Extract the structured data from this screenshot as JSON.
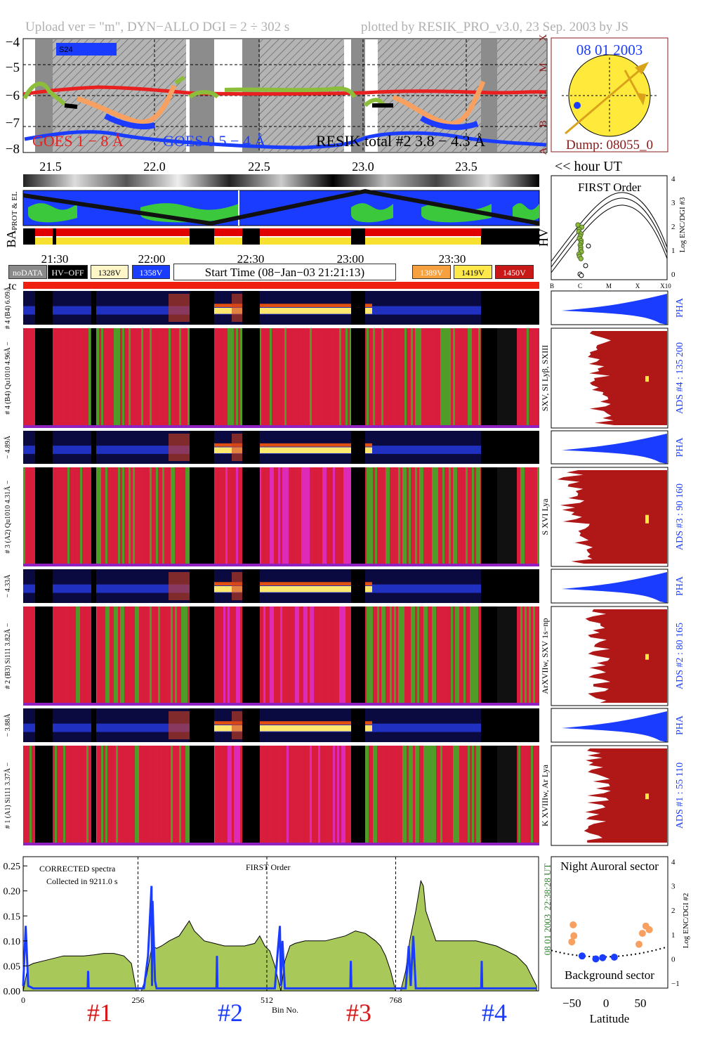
{
  "header": {
    "left": "Upload ver = \"m\", DYN−ALLO DGI =   2 ÷ 302 s",
    "right": "plotted by RESIK_PRO_v3.0, 23 Sep. 2003 by JS"
  },
  "goes_panel": {
    "y_ticks": [
      "−4",
      "−5",
      "−6",
      "−7",
      "−8"
    ],
    "x_ticks": [
      "21.5",
      "22.0",
      "22.5",
      "23.0",
      "23.5"
    ],
    "class_labels": [
      "X",
      "M",
      "C",
      "B",
      "A"
    ],
    "s_label": "S24",
    "legend_goes1": "GOES 1 − 8 Å",
    "legend_goes2": "GOES 0.5 − 4 Å",
    "legend_resik": "RESIK total #2  3.8 − 4.3 Å",
    "xaxis_label": "<< hour UT",
    "colors": {
      "goes_long": "#e82020",
      "goes_short": "#1a3cff",
      "resik_orange": "#f7a060",
      "resik_green": "#8cbe3c",
      "resik_blue": "#1e3cff"
    }
  },
  "sun_panel": {
    "date": "08 01 2003",
    "dump": "Dump: 08055_0",
    "sun_color": "#ffea3c",
    "arrow_color": "#d9a21a"
  },
  "orbit_panel": {
    "label_top": "PROT & EL",
    "label_ba": "BA",
    "label_hv": "HV",
    "time_ticks": [
      "21:30",
      "22:00",
      "22:30",
      "23:00",
      "23:30"
    ]
  },
  "first_order_panel": {
    "title": "FIRST Order",
    "ylabel": "Log ENC/DGI #3",
    "y_ticks": [
      "4",
      "3",
      "2",
      "1",
      "0"
    ],
    "x_ticks": [
      "B",
      "C",
      "M",
      "X",
      "X10"
    ]
  },
  "status_bar": {
    "nodata": "noDATA",
    "hvoff": "HV−OFF",
    "v1": "1328V",
    "v2": "1358V",
    "start_time": "Start Time (08−Jan−03 21:21:13)",
    "v3": "1389V",
    "v4": "1419V",
    "v5": "1450V",
    "colors": {
      "nodata": "#8a8a8a",
      "hvoff": "#000000",
      "v1": "#fff6c8",
      "v2": "#1a3cff",
      "v3": "#f7a040",
      "v4": "#ffe94a",
      "v5": "#c81818"
    }
  },
  "tc_label": "tc",
  "channels": [
    {
      "pha_label": "# 4 (B4)  6.09Å",
      "spec_label": "# 4 (B4) Qu1010 4.96Å −",
      "line_label": "SXV, SI Lyβ, SXIII",
      "ads": "ADS #4 :   135 200",
      "pha": "PHA"
    },
    {
      "pha_label": "− 4.89Å",
      "spec_label": "# 3 (A2) Qu1010  4.31Å −",
      "line_label": "S XVI Lya",
      "ads": "ADS #3 :   90 160",
      "pha": "PHA"
    },
    {
      "pha_label": "− 4.33Å",
      "spec_label": "# 2 (B3) Si111  3.82Å −",
      "line_label": "ArXVIIw, SXV 1s−np",
      "ads": "ADS #2 :   80 165",
      "pha": "PHA"
    },
    {
      "pha_label": "− 3.88Å",
      "spec_label": "# 1 (A1) Si111  3.37Å −",
      "line_label": "K XVIIIw, Ar Lya",
      "ads": "ADS #1 :   55 110",
      "pha": "PHA"
    }
  ],
  "chart_data": [
    {
      "type": "area",
      "title": "",
      "annotations": [
        "CORRECTED spectra",
        "Collected in  9211.0 s",
        "FIRST Order"
      ],
      "xlabel": "Bin No.",
      "ylabel": "",
      "x_ticks": [
        "0",
        "256",
        "512",
        "768"
      ],
      "y_ticks": [
        "0.25",
        "0.20",
        "0.15",
        "0.10",
        "0.05",
        "0.00"
      ],
      "xlim": [
        0,
        1024
      ],
      "ylim": [
        0,
        0.26
      ],
      "section_labels": [
        "#1",
        "#2",
        "#3",
        "#4"
      ],
      "side_label_date": "08 01 2003",
      "side_label_time": "22:38:28 UT",
      "series": [
        {
          "name": "",
          "x": [
            0,
            10,
            20,
            40,
            60,
            80,
            100,
            120,
            140,
            160,
            180,
            200,
            215,
            225,
            235,
            245,
            256,
            265,
            275,
            290,
            310,
            330,
            340,
            350,
            360,
            380,
            400,
            420,
            440,
            460,
            470,
            480,
            490,
            500,
            512,
            520,
            530,
            540,
            560,
            580,
            600,
            620,
            640,
            660,
            680,
            700,
            710,
            720,
            730,
            740,
            750,
            760,
            768,
            780,
            790,
            795,
            800,
            810,
            820,
            830,
            840,
            860,
            880,
            900,
            920,
            940,
            960,
            980,
            1000,
            1010,
            1020
          ],
          "y": [
            0.0,
            0.05,
            0.055,
            0.06,
            0.065,
            0.07,
            0.07,
            0.07,
            0.072,
            0.075,
            0.075,
            0.07,
            0.055,
            0.0,
            0.0,
            0.03,
            0.09,
            0.085,
            0.09,
            0.1,
            0.11,
            0.14,
            0.12,
            0.11,
            0.1,
            0.095,
            0.09,
            0.09,
            0.09,
            0.095,
            0.11,
            0.09,
            0.08,
            0.05,
            0.0,
            0.06,
            0.09,
            0.095,
            0.1,
            0.1,
            0.1,
            0.105,
            0.11,
            0.12,
            0.115,
            0.1,
            0.09,
            0.07,
            0.04,
            0.0,
            0.0,
            0.04,
            0.1,
            0.16,
            0.22,
            0.21,
            0.16,
            0.13,
            0.1,
            0.1,
            0.1,
            0.1,
            0.1,
            0.1,
            0.095,
            0.09,
            0.08,
            0.07,
            0.05,
            0.03,
            0.01
          ]
        },
        {
          "name": "",
          "x": [
            0,
            5,
            10,
            20,
            100,
            128,
            129,
            130,
            240,
            248,
            255,
            256,
            257,
            262,
            265,
            272,
            380,
            384,
            385,
            386,
            500,
            505,
            510,
            512,
            515,
            520,
            640,
            650,
            651,
            652,
            760,
            766,
            770,
            775,
            780,
            800,
            900,
            910,
            911,
            912,
            1020
          ],
          "y": [
            0.01,
            0.13,
            0.01,
            0.005,
            0.005,
            0.005,
            0.04,
            0.005,
            0.005,
            0.07,
            0.21,
            0.01,
            0.18,
            0.02,
            0.005,
            0.005,
            0.005,
            0.005,
            0.07,
            0.005,
            0.005,
            0.07,
            0.13,
            0.01,
            0.1,
            0.005,
            0.005,
            0.005,
            0.06,
            0.005,
            0.005,
            0.09,
            0.01,
            0.11,
            0.005,
            0.005,
            0.005,
            0.005,
            0.06,
            0.005,
            0.005
          ]
        }
      ]
    },
    {
      "type": "scatter",
      "title": "Night Auroral sector",
      "annotations": [
        "Background sector"
      ],
      "xlabel": "Latitude",
      "ylabel": "Log ENC/DGI #2",
      "x_ticks": [
        "−50",
        "0",
        "50"
      ],
      "y_ticks": [
        "4",
        "3",
        "2",
        "1",
        "0",
        "−1"
      ],
      "xlim": [
        -80,
        90
      ],
      "ylim": [
        -1.2,
        4.2
      ],
      "series": [
        {
          "name": "",
          "x": [
            -48,
            -47,
            -50,
            48,
            53,
            58,
            63
          ],
          "y": [
            1.4,
            0.95,
            0.7,
            0.6,
            1.05,
            1.35,
            1.2
          ]
        },
        {
          "name": "",
          "x": [
            -35,
            -15,
            -5,
            12
          ],
          "y": [
            0.12,
            0.0,
            0.05,
            0.07
          ]
        }
      ]
    }
  ]
}
